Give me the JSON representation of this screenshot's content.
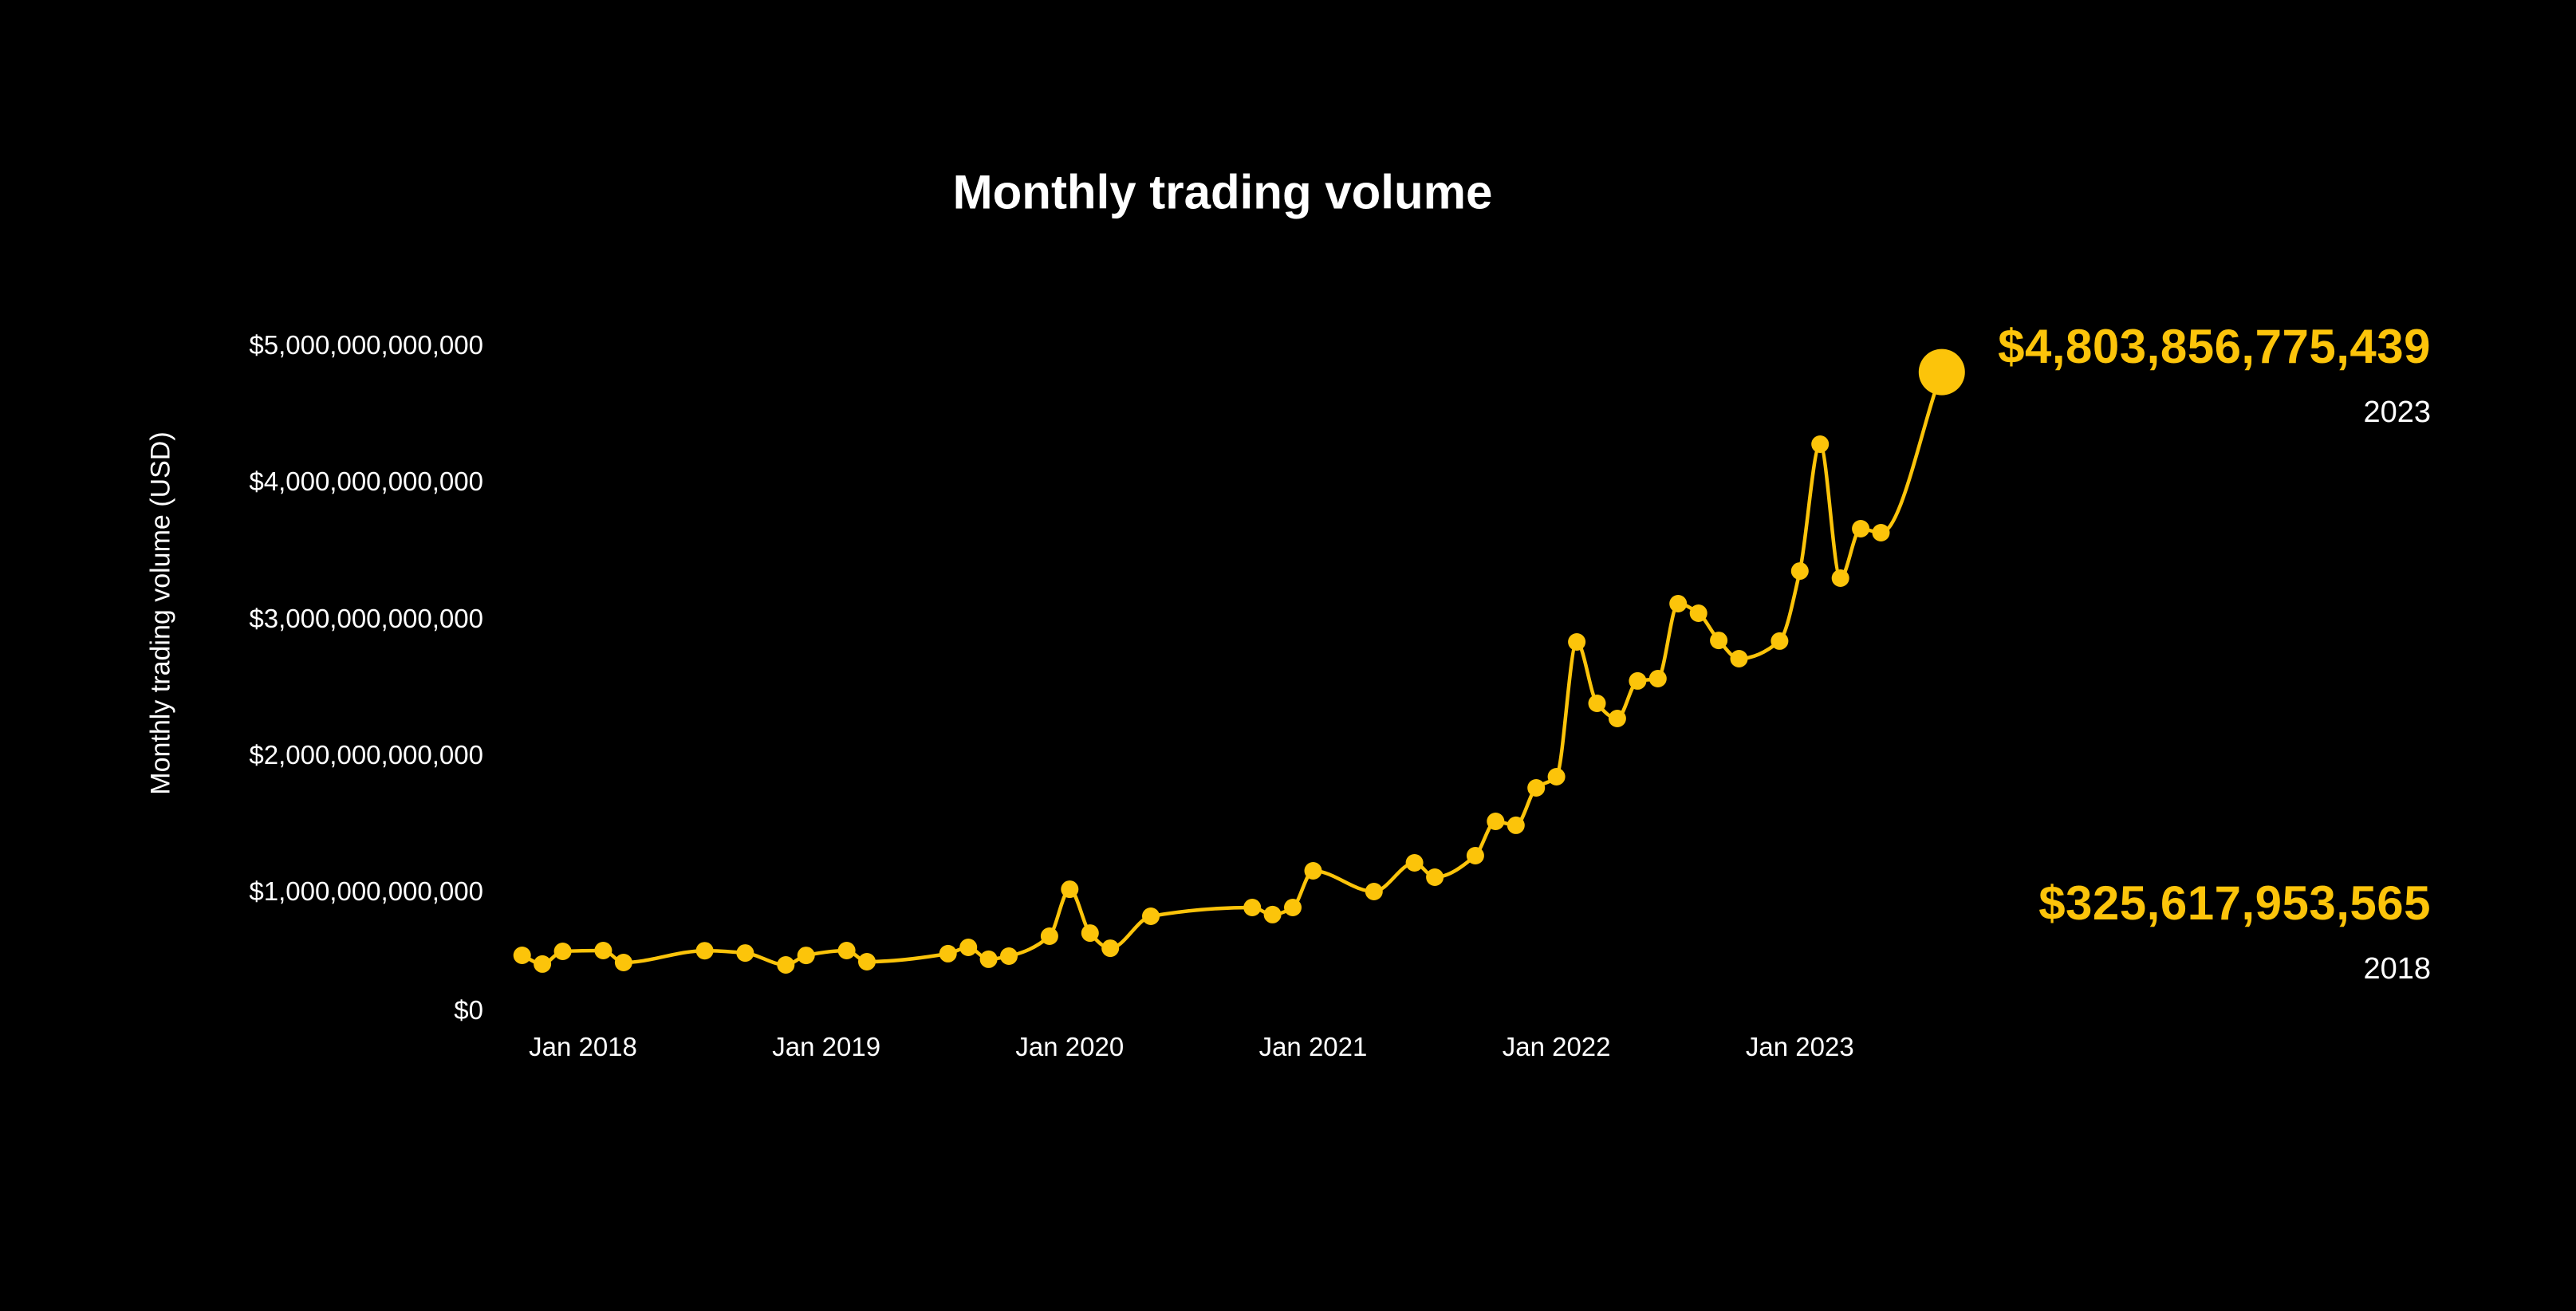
{
  "colors": {
    "background": "#000000",
    "accent_yellow": "#FCC40A",
    "text_primary": "#FFFFFF"
  },
  "chart_data": {
    "type": "line",
    "title": "Monthly trading volume",
    "ylabel": "Monthly trading volume (USD)",
    "xlabel": "",
    "unit": "USD",
    "grid": false,
    "legend_position": "none",
    "ylim": [
      0,
      5000000000000
    ],
    "x_range": [
      "2017-10",
      "2023-08"
    ],
    "y_ticks": [
      {
        "label": "$5,000,000,000,000",
        "value": 5000000000000
      },
      {
        "label": "$4,000,000,000,000",
        "value": 4000000000000
      },
      {
        "label": "$3,000,000,000,000",
        "value": 3000000000000
      },
      {
        "label": "$2,000,000,000,000",
        "value": 2000000000000
      },
      {
        "label": "$1,000,000,000,000",
        "value": 1000000000000
      },
      {
        "label": "$0",
        "value": 0
      }
    ],
    "x_ticks": [
      {
        "label": "Jan 2018",
        "month": "2018-01"
      },
      {
        "label": "Jan 2019",
        "month": "2019-01"
      },
      {
        "label": "Jan 2020",
        "month": "2020-01"
      },
      {
        "label": "Jan 2021",
        "month": "2021-01"
      },
      {
        "label": "Jan 2022",
        "month": "2022-01"
      },
      {
        "label": "Jan 2023",
        "month": "2023-01"
      }
    ],
    "series": [
      {
        "name": "Monthly trading volume",
        "points": [
          {
            "m": "2017-10",
            "v": 533000000000
          },
          {
            "m": "2017-11",
            "v": 469000000000
          },
          {
            "m": "2017-12",
            "v": 562000000000
          },
          {
            "m": "2018-02",
            "v": 568000000000
          },
          {
            "m": "2018-03",
            "v": 480000000000
          },
          {
            "m": "2018-07",
            "v": 567000000000
          },
          {
            "m": "2018-09",
            "v": 550000000000
          },
          {
            "m": "2018-11",
            "v": 463000000000
          },
          {
            "m": "2018-12",
            "v": 532000000000
          },
          {
            "m": "2019-02",
            "v": 568000000000
          },
          {
            "m": "2019-03",
            "v": 486000000000
          },
          {
            "m": "2019-07",
            "v": 545000000000
          },
          {
            "m": "2019-08",
            "v": 591000000000
          },
          {
            "m": "2019-09",
            "v": 504000000000
          },
          {
            "m": "2019-10",
            "v": 527000000000
          },
          {
            "m": "2019-12",
            "v": 673000000000
          },
          {
            "m": "2020-01",
            "v": 1017000000000
          },
          {
            "m": "2020-02",
            "v": 696000000000
          },
          {
            "m": "2020-03",
            "v": 585000000000
          },
          {
            "m": "2020-05",
            "v": 819000000000
          },
          {
            "m": "2020-10",
            "v": 883000000000
          },
          {
            "m": "2020-11",
            "v": 831000000000
          },
          {
            "m": "2020-12",
            "v": 883000000000
          },
          {
            "m": "2021-01",
            "v": 1152000000000
          },
          {
            "m": "2021-04",
            "v": 1000000000000
          },
          {
            "m": "2021-06",
            "v": 1210000000000
          },
          {
            "m": "2021-07",
            "v": 1105000000000
          },
          {
            "m": "2021-09",
            "v": 1263000000000
          },
          {
            "m": "2021-10",
            "v": 1514000000000
          },
          {
            "m": "2021-11",
            "v": 1485000000000
          },
          {
            "m": "2021-12",
            "v": 1759000000000
          },
          {
            "m": "2022-01",
            "v": 1841000000000
          },
          {
            "m": "2022-02",
            "v": 2828000000000
          },
          {
            "m": "2022-03",
            "v": 2378000000000
          },
          {
            "m": "2022-04",
            "v": 2267000000000
          },
          {
            "m": "2022-05",
            "v": 2542000000000
          },
          {
            "m": "2022-06",
            "v": 2559000000000
          },
          {
            "m": "2022-07",
            "v": 3108000000000
          },
          {
            "m": "2022-08",
            "v": 3038000000000
          },
          {
            "m": "2022-09",
            "v": 2839000000000
          },
          {
            "m": "2022-10",
            "v": 2705000000000
          },
          {
            "m": "2022-12",
            "v": 2834000000000
          },
          {
            "m": "2023-01",
            "v": 3347000000000
          },
          {
            "m": "2023-02",
            "v": 4276000000000
          },
          {
            "m": "2023-03",
            "v": 3295000000000
          },
          {
            "m": "2023-04",
            "v": 3657000000000
          },
          {
            "m": "2023-05",
            "v": 3628000000000
          },
          {
            "m": "2023-08",
            "v": 4803856775439,
            "highlight": true
          }
        ]
      }
    ],
    "annotations": [
      {
        "value_label": "$4,803,856,775,439",
        "year_label": "2023",
        "position": "top-right"
      },
      {
        "value_label": "$325,617,953,565",
        "year_label": "2018",
        "position": "bottom-right"
      }
    ]
  }
}
